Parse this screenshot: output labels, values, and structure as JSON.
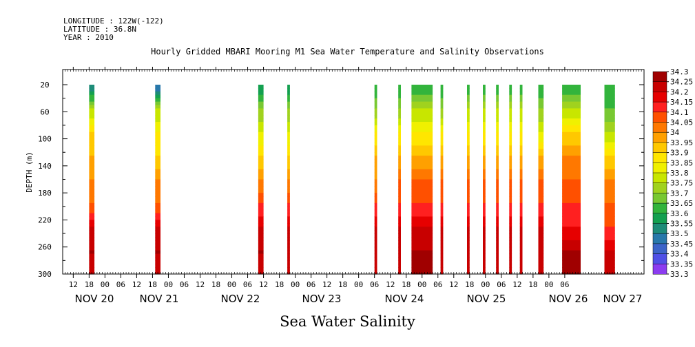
{
  "header": {
    "longitude": "LONGITUDE : 122W(-122)",
    "latitude": "LATITUDE : 36.8N",
    "year": "YEAR : 2010"
  },
  "title": "Hourly Gridded MBARI Mooring M1 Sea Water Temperature and Salinity Observations",
  "footer": "Sea Water Salinity",
  "chart_data": {
    "type": "heatmap",
    "title": "Hourly Gridded MBARI Mooring M1 Sea Water Temperature and Salinity Observations",
    "ylabel": "DEPTH (m)",
    "xlabel": "",
    "variable": "Sea Water Salinity",
    "y_ticks": [
      20,
      60,
      100,
      140,
      180,
      220,
      260,
      300
    ],
    "ylim": [
      300,
      0
    ],
    "x_hour_ticks": [
      "12",
      "18",
      "00",
      "06",
      "12",
      "18",
      "00",
      "06",
      "12",
      "18",
      "00",
      "06",
      "12",
      "18",
      "00",
      "06",
      "12",
      "18",
      "00",
      "06",
      "12",
      "18",
      "00",
      "06",
      "12",
      "18",
      "00",
      "06",
      "12",
      "18",
      "00",
      "06"
    ],
    "x_days": [
      "NOV 20",
      "NOV 21",
      "NOV 22",
      "NOV 23",
      "NOV 24",
      "NOV 25",
      "NOV 26",
      "NOV 27"
    ],
    "colorbar": {
      "levels": [
        "34.3",
        "34.25",
        "34.2",
        "34.15",
        "34.1",
        "34.05",
        "34",
        "33.95",
        "33.9",
        "33.85",
        "33.8",
        "33.75",
        "33.7",
        "33.65",
        "33.6",
        "33.55",
        "33.5",
        "33.45",
        "33.4",
        "33.35",
        "33.3"
      ],
      "colors": [
        "#a00000",
        "#c80000",
        "#e60000",
        "#ff2020",
        "#ff5000",
        "#ff7800",
        "#ffa000",
        "#ffc800",
        "#ffe600",
        "#f0f000",
        "#c8e600",
        "#a0d21e",
        "#78c832",
        "#32b43c",
        "#14a050",
        "#1e8c78",
        "#2878aa",
        "#3c64c8",
        "#5050e6",
        "#8c3cf0",
        "#c814f0"
      ]
    },
    "observation_windows": [
      {
        "start_hour": 18,
        "end_hour": 20,
        "salinity_profile": [
          33.5,
          33.75,
          33.9,
          33.95,
          34.0,
          34.05,
          34.2,
          34.25,
          34.2
        ]
      },
      {
        "start_hour": 43,
        "end_hour": 45,
        "salinity_profile": [
          33.45,
          33.75,
          33.85,
          33.9,
          34.0,
          34.05,
          34.2,
          34.25,
          34.2
        ]
      },
      {
        "start_hour": 82,
        "end_hour": 84,
        "salinity_profile": [
          33.55,
          33.7,
          33.8,
          33.9,
          34.0,
          34.1,
          34.2,
          34.25,
          34.2
        ]
      },
      {
        "start_hour": 93,
        "end_hour": 94,
        "salinity_profile": [
          33.55,
          33.7,
          33.8,
          33.9,
          34.0,
          34.1,
          34.2,
          34.2,
          34.2
        ]
      },
      {
        "start_hour": 126,
        "end_hour": 127,
        "salinity_profile": [
          33.6,
          33.7,
          33.85,
          33.95,
          34.0,
          34.1,
          34.2,
          34.2,
          34.2
        ]
      },
      {
        "start_hour": 135,
        "end_hour": 136,
        "salinity_profile": [
          33.6,
          33.7,
          33.85,
          33.95,
          34.05,
          34.1,
          34.2,
          34.2,
          34.2
        ]
      },
      {
        "start_hour": 140,
        "end_hour": 148,
        "salinity_profile": [
          33.6,
          33.75,
          33.85,
          33.95,
          34.05,
          34.1,
          34.2,
          34.25,
          34.25
        ]
      },
      {
        "start_hour": 151,
        "end_hour": 152,
        "salinity_profile": [
          33.6,
          33.7,
          33.85,
          33.95,
          34.05,
          34.1,
          34.2,
          34.2,
          34.2
        ]
      },
      {
        "start_hour": 161,
        "end_hour": 162,
        "salinity_profile": [
          33.6,
          33.75,
          33.85,
          33.95,
          34.05,
          34.1,
          34.2,
          34.2,
          34.2
        ]
      },
      {
        "start_hour": 167,
        "end_hour": 168,
        "salinity_profile": [
          33.6,
          33.75,
          33.85,
          33.95,
          34.05,
          34.1,
          34.2,
          34.2,
          34.2
        ]
      },
      {
        "start_hour": 172,
        "end_hour": 173,
        "salinity_profile": [
          33.6,
          33.75,
          33.85,
          33.95,
          34.05,
          34.1,
          34.2,
          34.2,
          34.2
        ]
      },
      {
        "start_hour": 177,
        "end_hour": 178,
        "salinity_profile": [
          33.6,
          33.75,
          33.85,
          33.95,
          34.05,
          34.1,
          34.2,
          34.2,
          34.2
        ]
      },
      {
        "start_hour": 181,
        "end_hour": 182,
        "salinity_profile": [
          33.6,
          33.75,
          33.85,
          33.95,
          34.05,
          34.1,
          34.2,
          34.2,
          34.2
        ]
      },
      {
        "start_hour": 188,
        "end_hour": 190,
        "salinity_profile": [
          33.6,
          33.7,
          33.8,
          33.95,
          34.05,
          34.1,
          34.2,
          34.2,
          34.2
        ]
      },
      {
        "start_hour": 197,
        "end_hour": 204,
        "salinity_profile": [
          33.6,
          33.75,
          33.9,
          34.0,
          34.05,
          34.1,
          34.15,
          34.25,
          34.25
        ]
      },
      {
        "start_hour": 213,
        "end_hour": 217,
        "salinity_profile": [
          33.6,
          33.65,
          33.75,
          33.9,
          34.0,
          34.05,
          34.1,
          34.2,
          34.2
        ]
      }
    ]
  }
}
